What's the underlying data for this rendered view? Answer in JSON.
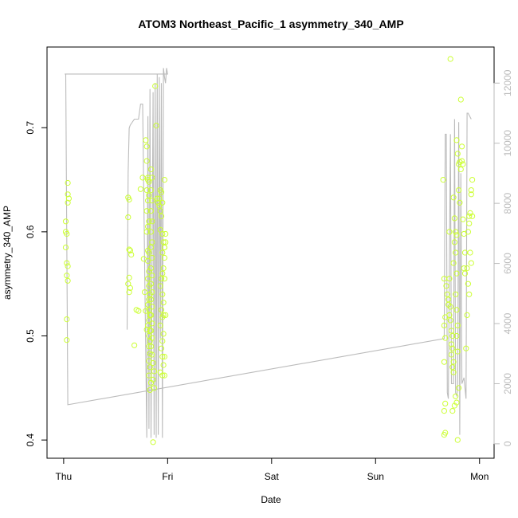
{
  "chart_data": {
    "type": "scatter",
    "title": "ATOM3 Northeast_Pacific_1 asymmetry_340_AMP",
    "xlabel": "Date",
    "ylabel": "asymmetry_340_AMP",
    "x_ticks": [
      {
        "label": "Thu",
        "value": 0
      },
      {
        "label": "Fri",
        "value": 1
      },
      {
        "label": "Sat",
        "value": 2
      },
      {
        "label": "Sun",
        "value": 3
      },
      {
        "label": "Mon",
        "value": 4
      }
    ],
    "xlim": [
      -0.16,
      4.14
    ],
    "ylim": [
      0.3825,
      0.7775
    ],
    "y_ticks": [
      0.4,
      0.5,
      0.6,
      0.7
    ],
    "y_tick_labels": [
      "0.4",
      "0.5",
      "0.6",
      "0.7"
    ],
    "y2lim": [
      -480,
      13200
    ],
    "y2_ticks": [
      0,
      2000,
      4000,
      6000,
      8000,
      10000,
      12000
    ],
    "y2_tick_labels": [
      "0",
      "2000",
      "4000",
      "6000",
      "8000",
      "10000",
      "12000"
    ],
    "point_color": "#ccff33",
    "line_color": "#bbbbbb",
    "points": [
      [
        0.02,
        0.61
      ],
      [
        0.02,
        0.6
      ],
      [
        0.03,
        0.598
      ],
      [
        0.02,
        0.585
      ],
      [
        0.03,
        0.57
      ],
      [
        0.04,
        0.567
      ],
      [
        0.03,
        0.558
      ],
      [
        0.04,
        0.553
      ],
      [
        0.03,
        0.516
      ],
      [
        0.03,
        0.496
      ],
      [
        0.04,
        0.647
      ],
      [
        0.04,
        0.636
      ],
      [
        0.05,
        0.632
      ],
      [
        0.04,
        0.628
      ],
      [
        0.62,
        0.633
      ],
      [
        0.63,
        0.631
      ],
      [
        0.62,
        0.614
      ],
      [
        0.63,
        0.583
      ],
      [
        0.64,
        0.582
      ],
      [
        0.65,
        0.578
      ],
      [
        0.63,
        0.556
      ],
      [
        0.62,
        0.55
      ],
      [
        0.64,
        0.546
      ],
      [
        0.63,
        0.542
      ],
      [
        0.68,
        0.491
      ],
      [
        0.7,
        0.525
      ],
      [
        0.72,
        0.524
      ],
      [
        0.74,
        0.641
      ],
      [
        0.76,
        0.652
      ],
      [
        0.77,
        0.574
      ],
      [
        0.78,
        0.542
      ],
      [
        0.79,
        0.524
      ],
      [
        0.8,
        0.506
      ],
      [
        0.79,
        0.688
      ],
      [
        0.8,
        0.682
      ],
      [
        0.8,
        0.668
      ],
      [
        0.8,
        0.64
      ],
      [
        0.81,
        0.65
      ],
      [
        0.81,
        0.652
      ],
      [
        0.82,
        0.648
      ],
      [
        0.82,
        0.635
      ],
      [
        0.81,
        0.63
      ],
      [
        0.8,
        0.62
      ],
      [
        0.82,
        0.61
      ],
      [
        0.81,
        0.605
      ],
      [
        0.8,
        0.6
      ],
      [
        0.81,
        0.582
      ],
      [
        0.82,
        0.58
      ],
      [
        0.81,
        0.572
      ],
      [
        0.82,
        0.562
      ],
      [
        0.81,
        0.555
      ],
      [
        0.82,
        0.548
      ],
      [
        0.83,
        0.54
      ],
      [
        0.82,
        0.535
      ],
      [
        0.81,
        0.53
      ],
      [
        0.82,
        0.525
      ],
      [
        0.83,
        0.52
      ],
      [
        0.82,
        0.515
      ],
      [
        0.81,
        0.51
      ],
      [
        0.83,
        0.505
      ],
      [
        0.82,
        0.5
      ],
      [
        0.83,
        0.495
      ],
      [
        0.82,
        0.49
      ],
      [
        0.83,
        0.483
      ],
      [
        0.82,
        0.476
      ],
      [
        0.83,
        0.47
      ],
      [
        0.82,
        0.462
      ],
      [
        0.84,
        0.455
      ],
      [
        0.83,
        0.448
      ],
      [
        0.84,
        0.66
      ],
      [
        0.85,
        0.652
      ],
      [
        0.84,
        0.64
      ],
      [
        0.85,
        0.63
      ],
      [
        0.84,
        0.62
      ],
      [
        0.85,
        0.61
      ],
      [
        0.84,
        0.6
      ],
      [
        0.85,
        0.59
      ],
      [
        0.84,
        0.585
      ],
      [
        0.85,
        0.575
      ],
      [
        0.84,
        0.565
      ],
      [
        0.85,
        0.558
      ],
      [
        0.84,
        0.55
      ],
      [
        0.85,
        0.542
      ],
      [
        0.84,
        0.535
      ],
      [
        0.85,
        0.528
      ],
      [
        0.84,
        0.52
      ],
      [
        0.85,
        0.512
      ],
      [
        0.84,
        0.505
      ],
      [
        0.85,
        0.498
      ],
      [
        0.84,
        0.49
      ],
      [
        0.85,
        0.482
      ],
      [
        0.86,
        0.474
      ],
      [
        0.87,
        0.466
      ],
      [
        0.86,
        0.458
      ],
      [
        0.87,
        0.45
      ],
      [
        0.86,
        0.398
      ],
      [
        0.88,
        0.74
      ],
      [
        0.89,
        0.702
      ],
      [
        0.9,
        0.632
      ],
      [
        0.91,
        0.628
      ],
      [
        0.92,
        0.632
      ],
      [
        0.93,
        0.64
      ],
      [
        0.92,
        0.625
      ],
      [
        0.94,
        0.638
      ],
      [
        0.93,
        0.62
      ],
      [
        0.94,
        0.615
      ],
      [
        0.93,
        0.602
      ],
      [
        0.95,
        0.598
      ],
      [
        0.96,
        0.59
      ],
      [
        0.97,
        0.585
      ],
      [
        0.95,
        0.58
      ],
      [
        0.97,
        0.575
      ],
      [
        0.96,
        0.565
      ],
      [
        0.95,
        0.56
      ],
      [
        0.94,
        0.555
      ],
      [
        0.93,
        0.548
      ],
      [
        0.95,
        0.54
      ],
      [
        0.96,
        0.532
      ],
      [
        0.94,
        0.525
      ],
      [
        0.95,
        0.518
      ],
      [
        0.93,
        0.51
      ],
      [
        0.96,
        0.502
      ],
      [
        0.95,
        0.495
      ],
      [
        0.94,
        0.488
      ],
      [
        0.95,
        0.48
      ],
      [
        0.96,
        0.472
      ],
      [
        0.93,
        0.465
      ],
      [
        0.95,
        0.462
      ],
      [
        0.97,
        0.585
      ],
      [
        0.98,
        0.59
      ],
      [
        0.98,
        0.598
      ],
      [
        0.97,
        0.555
      ],
      [
        0.96,
        0.52
      ],
      [
        0.98,
        0.52
      ],
      [
        0.97,
        0.48
      ],
      [
        0.97,
        0.462
      ],
      [
        0.95,
        0.628
      ],
      [
        0.97,
        0.65
      ],
      [
        3.65,
        0.65
      ],
      [
        3.66,
        0.555
      ],
      [
        3.67,
        0.518
      ],
      [
        3.66,
        0.51
      ],
      [
        3.67,
        0.498
      ],
      [
        3.66,
        0.475
      ],
      [
        3.67,
        0.435
      ],
      [
        3.66,
        0.428
      ],
      [
        3.67,
        0.407
      ],
      [
        3.66,
        0.405
      ],
      [
        3.68,
        0.548
      ],
      [
        3.69,
        0.54
      ],
      [
        3.7,
        0.535
      ],
      [
        3.71,
        0.6
      ],
      [
        3.72,
        0.766
      ],
      [
        3.71,
        0.555
      ],
      [
        3.7,
        0.53
      ],
      [
        3.72,
        0.528
      ],
      [
        3.71,
        0.52
      ],
      [
        3.72,
        0.515
      ],
      [
        3.73,
        0.505
      ],
      [
        3.74,
        0.5
      ],
      [
        3.73,
        0.492
      ],
      [
        3.74,
        0.488
      ],
      [
        3.73,
        0.482
      ],
      [
        3.75,
        0.475
      ],
      [
        3.74,
        0.47
      ],
      [
        3.75,
        0.465
      ],
      [
        3.74,
        0.428
      ],
      [
        3.76,
        0.433
      ],
      [
        3.77,
        0.442
      ],
      [
        3.78,
        0.436
      ],
      [
        3.79,
        0.4
      ],
      [
        3.75,
        0.633
      ],
      [
        3.76,
        0.613
      ],
      [
        3.77,
        0.6
      ],
      [
        3.78,
        0.597
      ],
      [
        3.76,
        0.59
      ],
      [
        3.77,
        0.58
      ],
      [
        3.75,
        0.57
      ],
      [
        3.78,
        0.56
      ],
      [
        3.77,
        0.54
      ],
      [
        3.78,
        0.525
      ],
      [
        3.79,
        0.51
      ],
      [
        3.78,
        0.5
      ],
      [
        3.79,
        0.485
      ],
      [
        3.8,
        0.45
      ],
      [
        3.78,
        0.688
      ],
      [
        3.79,
        0.675
      ],
      [
        3.8,
        0.665
      ],
      [
        3.81,
        0.667
      ],
      [
        3.8,
        0.64
      ],
      [
        3.81,
        0.628
      ],
      [
        3.82,
        0.727
      ],
      [
        3.83,
        0.682
      ],
      [
        3.83,
        0.668
      ],
      [
        3.84,
        0.665
      ],
      [
        3.82,
        0.66
      ],
      [
        3.84,
        0.612
      ],
      [
        3.85,
        0.598
      ],
      [
        3.86,
        0.58
      ],
      [
        3.85,
        0.565
      ],
      [
        3.86,
        0.56
      ],
      [
        3.87,
        0.488
      ],
      [
        3.88,
        0.52
      ],
      [
        3.89,
        0.55
      ],
      [
        3.88,
        0.565
      ],
      [
        3.9,
        0.54
      ],
      [
        3.89,
        0.6
      ],
      [
        3.9,
        0.615
      ],
      [
        3.91,
        0.618
      ],
      [
        3.9,
        0.608
      ],
      [
        3.92,
        0.64
      ],
      [
        3.93,
        0.65
      ],
      [
        3.92,
        0.636
      ],
      [
        3.91,
        0.58
      ],
      [
        3.92,
        0.57
      ],
      [
        3.93,
        0.615
      ]
    ],
    "line": [
      [
        0.01,
        12300
      ],
      [
        0.02,
        12300
      ],
      [
        0.04,
        1300
      ],
      [
        3.66,
        3500
      ],
      [
        3.67,
        10300
      ],
      [
        3.68,
        10300
      ],
      [
        3.69,
        1700
      ],
      [
        3.7,
        1500
      ],
      [
        3.72,
        10300
      ],
      [
        3.73,
        2000
      ],
      [
        3.75,
        2000
      ],
      [
        3.76,
        10800
      ],
      [
        3.77,
        1700
      ],
      [
        3.78,
        1600
      ],
      [
        3.79,
        1800
      ],
      [
        3.8,
        10700
      ],
      [
        3.81,
        300
      ],
      [
        3.82,
        9000
      ],
      [
        3.83,
        2000
      ],
      [
        3.85,
        2200
      ],
      [
        3.87,
        1500
      ],
      [
        3.88,
        11000
      ],
      [
        3.89,
        11000
      ],
      [
        3.92,
        10800
      ],
      null,
      [
        0.61,
        3800
      ],
      [
        0.62,
        9000
      ],
      [
        0.63,
        10500
      ],
      [
        0.64,
        10600
      ],
      [
        0.68,
        10800
      ],
      [
        0.72,
        10800
      ],
      [
        0.74,
        11300
      ],
      [
        0.76,
        11300
      ],
      [
        0.8,
        200
      ],
      [
        0.81,
        10900
      ],
      [
        0.82,
        500
      ],
      [
        0.83,
        11800
      ],
      [
        0.84,
        200
      ],
      [
        0.86,
        11700
      ],
      [
        0.87,
        300
      ],
      [
        0.88,
        12000
      ],
      [
        0.89,
        200
      ],
      [
        0.9,
        12300
      ],
      [
        0.91,
        300
      ],
      [
        0.92,
        12200
      ],
      [
        0.93,
        3500
      ],
      [
        0.94,
        12000
      ],
      [
        0.95,
        200
      ],
      [
        0.96,
        12500
      ],
      [
        0.97,
        12200
      ],
      [
        0.98,
        12000
      ],
      [
        0.99,
        12500
      ],
      [
        1.0,
        12300
      ],
      [
        0.99,
        12300
      ],
      [
        0.02,
        12300
      ]
    ]
  }
}
